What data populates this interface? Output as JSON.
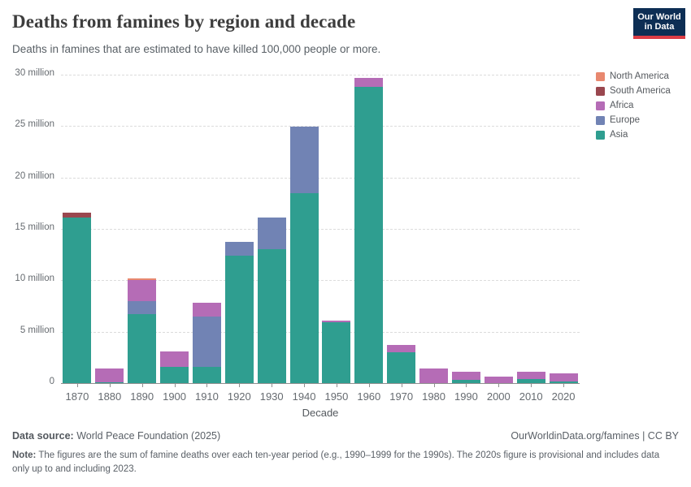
{
  "header": {
    "title": "Deaths from famines by region and decade",
    "subtitle": "Deaths in famines that are estimated to have killed 100,000 people or more.",
    "logo": {
      "line1": "Our World",
      "line2": "in Data",
      "bg_color": "#0d2e54",
      "accent_color": "#dc3c45"
    }
  },
  "chart_data": {
    "type": "bar",
    "stacked": true,
    "title": "Deaths from famines by region and decade",
    "xlabel": "Decade",
    "ylabel": "",
    "values_unit": "million deaths",
    "ylim": [
      0,
      30
    ],
    "grid": true,
    "legend_position": "right",
    "yticks": [
      {
        "value": 0,
        "label": "0"
      },
      {
        "value": 5,
        "label": "5 million"
      },
      {
        "value": 10,
        "label": "10 million"
      },
      {
        "value": 15,
        "label": "15 million"
      },
      {
        "value": 20,
        "label": "20 million"
      },
      {
        "value": 25,
        "label": "25 million"
      },
      {
        "value": 30,
        "label": "30 million"
      }
    ],
    "categories": [
      "1870",
      "1880",
      "1890",
      "1900",
      "1910",
      "1920",
      "1930",
      "1940",
      "1950",
      "1960",
      "1970",
      "1980",
      "1990",
      "2000",
      "2010",
      "2020"
    ],
    "series": [
      {
        "name": "Asia",
        "color": "#2f9e90",
        "values": [
          16.1,
          0.1,
          6.7,
          1.6,
          1.55,
          12.4,
          13.0,
          18.5,
          5.9,
          28.8,
          3.0,
          0,
          0.35,
          0,
          0.4,
          0.15
        ]
      },
      {
        "name": "Europe",
        "color": "#7183b4",
        "values": [
          0,
          0,
          1.3,
          0,
          4.95,
          1.35,
          3.1,
          6.45,
          0,
          0,
          0,
          0,
          0,
          0,
          0,
          0
        ]
      },
      {
        "name": "Africa",
        "color": "#b56cb6",
        "values": [
          0,
          1.3,
          2.0,
          1.5,
          1.3,
          0,
          0,
          0,
          0.15,
          0.9,
          0.7,
          1.4,
          0.75,
          0.6,
          0.7,
          0.8
        ]
      },
      {
        "name": "South America",
        "color": "#9a474f",
        "values": [
          0.5,
          0,
          0,
          0,
          0,
          0,
          0,
          0,
          0,
          0,
          0,
          0,
          0,
          0,
          0,
          0
        ]
      },
      {
        "name": "North America",
        "color": "#e8886f",
        "values": [
          0,
          0,
          0.2,
          0,
          0,
          0,
          0,
          0,
          0,
          0,
          0,
          0,
          0,
          0,
          0,
          0
        ]
      }
    ],
    "stack_order_note": "series listed bottom-to-top of stack"
  },
  "legend": {
    "items": [
      {
        "label": "North America",
        "color": "#e8886f"
      },
      {
        "label": "South America",
        "color": "#9a474f"
      },
      {
        "label": "Africa",
        "color": "#b56cb6"
      },
      {
        "label": "Europe",
        "color": "#7183b4"
      },
      {
        "label": "Asia",
        "color": "#2f9e90"
      }
    ]
  },
  "footer": {
    "datasource_label": "Data source:",
    "datasource_value": " World Peace Foundation (2025)",
    "citation_link": "OurWorldinData.org/famines",
    "citation_license": " | CC BY",
    "note_label": "Note:",
    "note_text": " The figures are the sum of famine deaths over each ten-year period (e.g., 1990–1999 for the 1990s). The 2020s figure is provisional and includes data only up to and including 2023."
  }
}
